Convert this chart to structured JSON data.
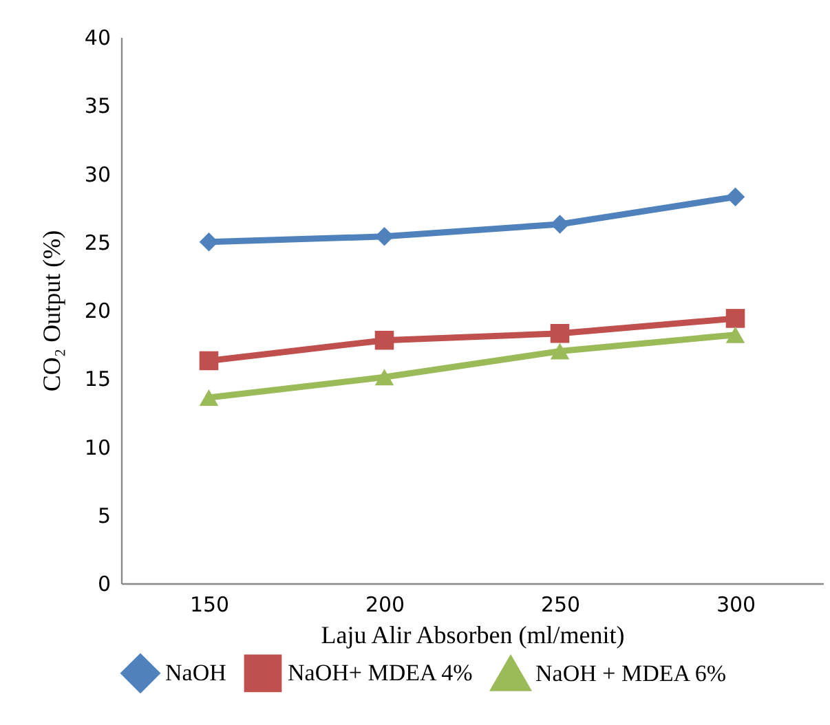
{
  "chart_data": {
    "type": "line",
    "xlabel": "Laju Alir Absorben (ml/menit)",
    "ylabel": "CO₂ Output (%)",
    "categories": [
      "150",
      "200",
      "250",
      "300"
    ],
    "series": [
      {
        "name": "NaOH",
        "color": "#4f81bd",
        "marker": "diamond",
        "values": [
          25.0,
          25.4,
          26.3,
          28.3
        ]
      },
      {
        "name": "NaOH+ MDEA 4%",
        "color": "#c0504d",
        "marker": "square",
        "values": [
          16.3,
          17.8,
          18.3,
          19.4
        ]
      },
      {
        "name": "NaOH + MDEA 6%",
        "color": "#9bbb59",
        "marker": "triangle",
        "values": [
          13.6,
          15.1,
          17.0,
          18.2
        ]
      }
    ],
    "ylim": [
      0,
      40
    ],
    "yticks": [
      0,
      5,
      10,
      15,
      20,
      25,
      30,
      35,
      40
    ],
    "grid": false,
    "legend": "bottom"
  }
}
